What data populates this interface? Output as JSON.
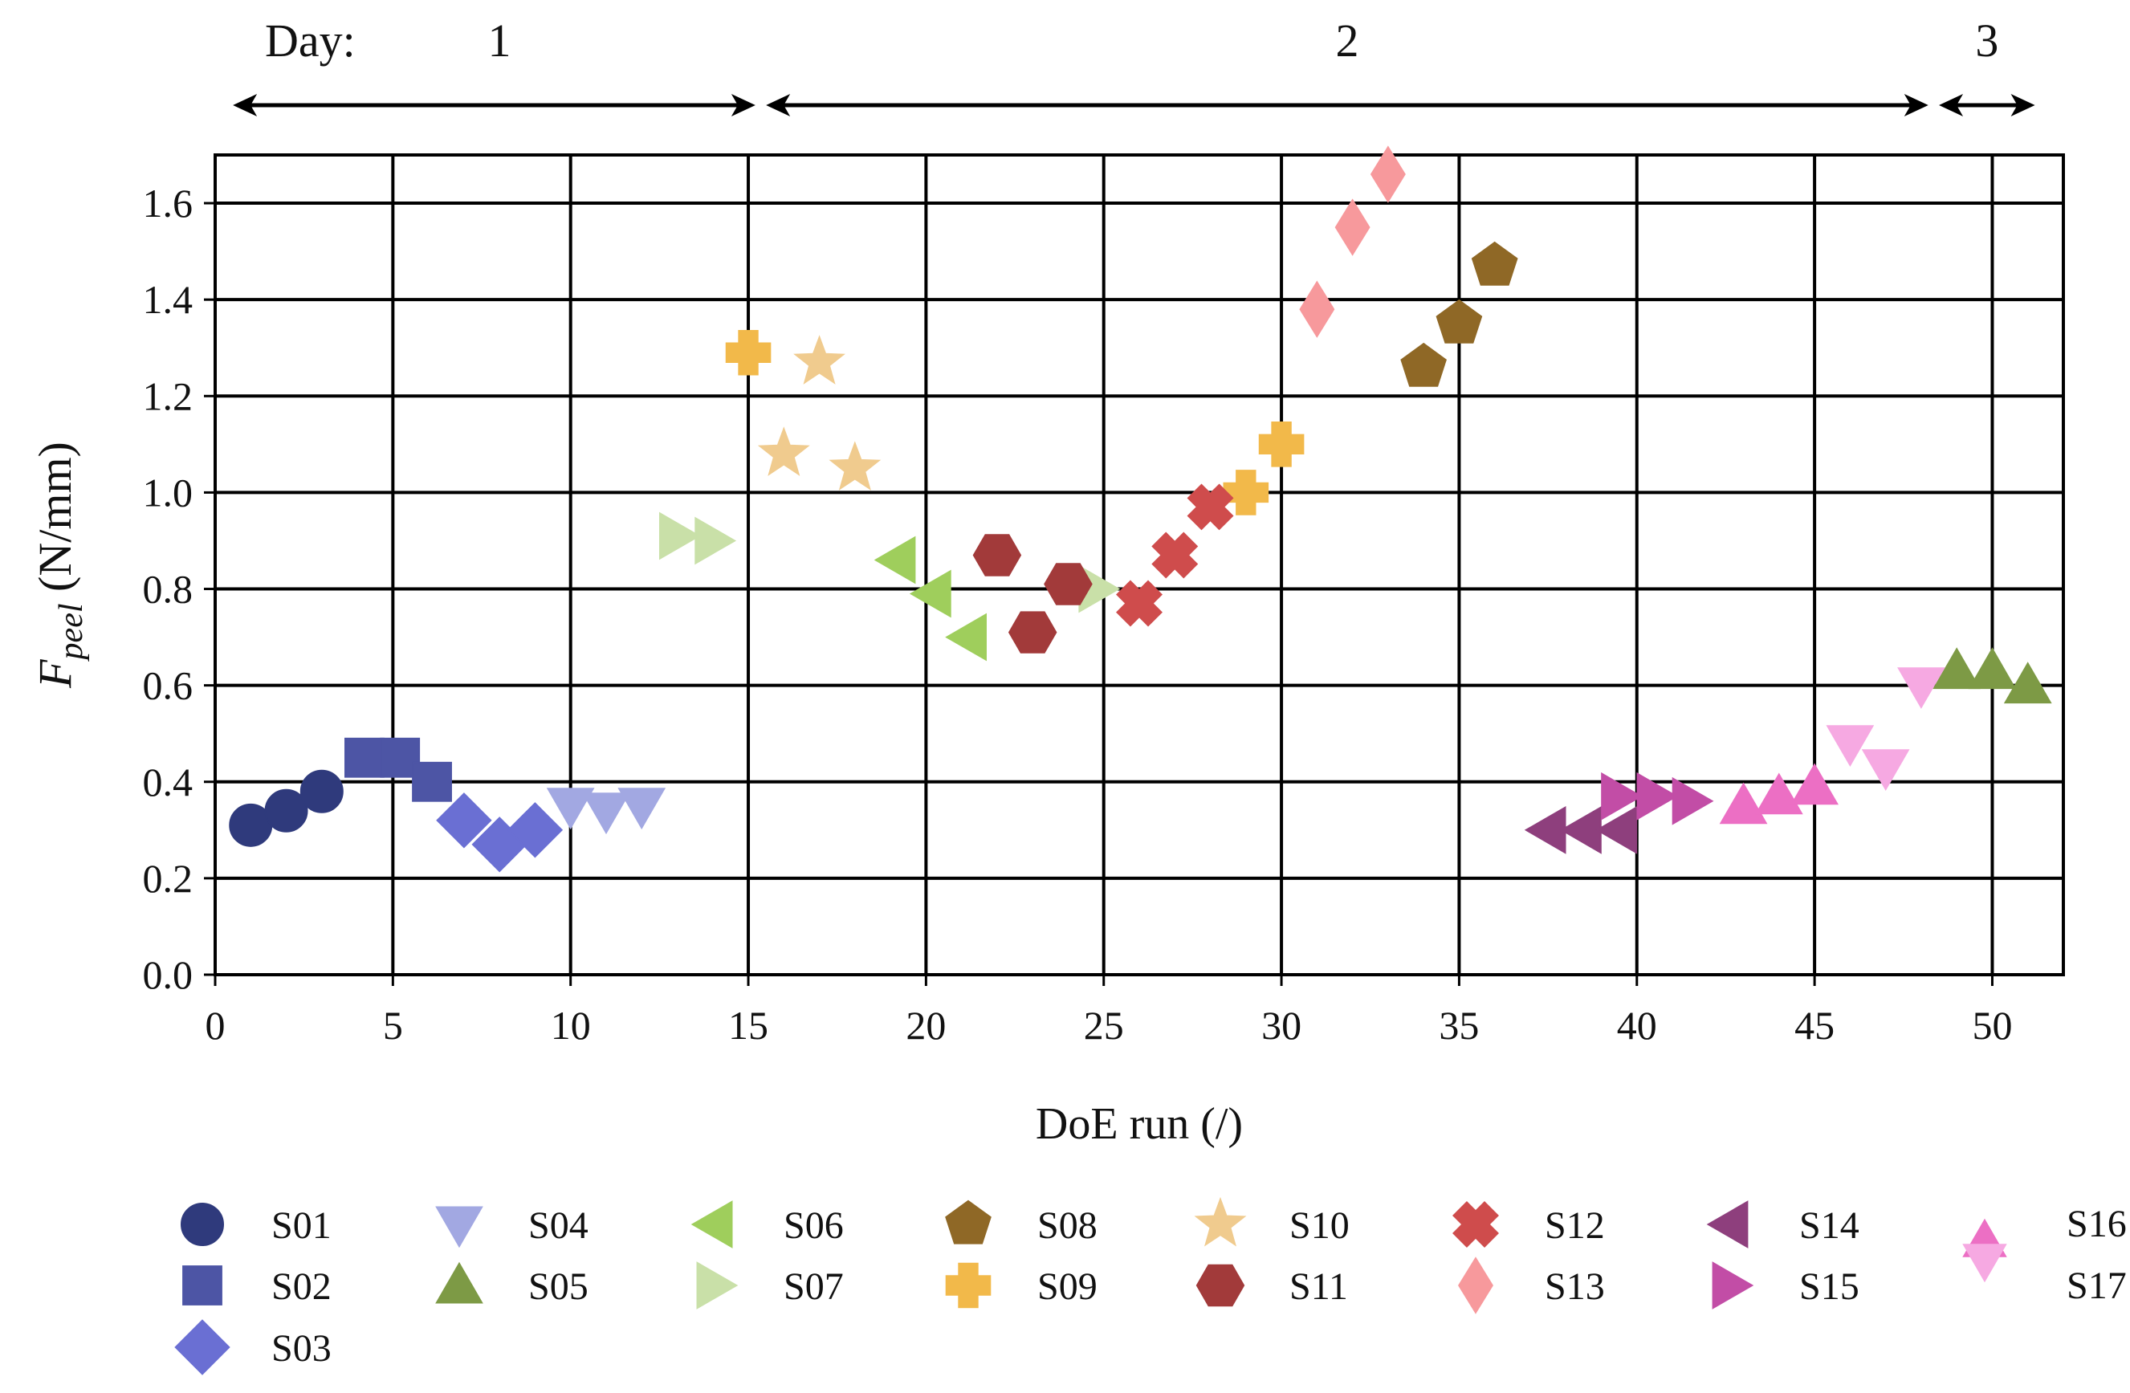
{
  "chart_data": {
    "type": "scatter",
    "day_label": "Day:",
    "days": [
      {
        "label": "1",
        "start": 0.5,
        "end": 15.2
      },
      {
        "label": "2",
        "start": 15.5,
        "end": 48.2
      },
      {
        "label": "3",
        "start": 48.5,
        "end": 51.2
      }
    ],
    "xlabel": "DoE run (/)",
    "ylabel": {
      "main": "F",
      "sub": "peel",
      "unit": " (N/mm)"
    },
    "xlim": [
      0,
      52
    ],
    "ylim": [
      0.0,
      1.7
    ],
    "xticks": [
      0,
      5,
      10,
      15,
      20,
      25,
      30,
      35,
      40,
      45,
      50
    ],
    "yticks": [
      "0.0",
      "0.2",
      "0.4",
      "0.6",
      "0.8",
      "1.0",
      "1.2",
      "1.4",
      "1.6"
    ],
    "grid": true,
    "legend_position": "bottom",
    "series": [
      {
        "name": "S01",
        "marker": "circle",
        "color": "#2f3a7c",
        "points": [
          [
            1,
            0.31
          ],
          [
            2,
            0.34
          ],
          [
            3,
            0.38
          ]
        ]
      },
      {
        "name": "S02",
        "marker": "square",
        "color": "#4d55a5",
        "points": [
          [
            4.2,
            0.45
          ],
          [
            5.2,
            0.45
          ],
          [
            6.1,
            0.4
          ]
        ]
      },
      {
        "name": "S03",
        "marker": "diamond",
        "color": "#6a6fd3",
        "points": [
          [
            7,
            0.32
          ],
          [
            8,
            0.27
          ],
          [
            9,
            0.3
          ]
        ]
      },
      {
        "name": "S04",
        "marker": "triangle-down",
        "color": "#a2a8e2",
        "points": [
          [
            10,
            0.35
          ],
          [
            11,
            0.34
          ],
          [
            12,
            0.35
          ]
        ]
      },
      {
        "name": "S05",
        "marker": "triangle-up",
        "color": "#7d9a45",
        "points": [
          [
            49,
            0.63
          ],
          [
            50,
            0.63
          ],
          [
            51,
            0.6
          ]
        ]
      },
      {
        "name": "S06",
        "marker": "triangle-left",
        "color": "#9fce5c",
        "points": [
          [
            19.2,
            0.86
          ],
          [
            20.2,
            0.79
          ],
          [
            21.2,
            0.7
          ]
        ]
      },
      {
        "name": "S07",
        "marker": "triangle-right",
        "color": "#c9e0a8",
        "points": [
          [
            13,
            0.91
          ],
          [
            14,
            0.9
          ],
          [
            24.8,
            0.8
          ]
        ]
      },
      {
        "name": "S08",
        "marker": "pentagon",
        "color": "#8f6826",
        "points": [
          [
            34,
            1.26
          ],
          [
            35,
            1.35
          ],
          [
            36,
            1.47
          ]
        ]
      },
      {
        "name": "S09",
        "marker": "plus",
        "color": "#f2b94a",
        "points": [
          [
            15,
            1.29
          ],
          [
            29,
            1.0
          ],
          [
            30,
            1.1
          ]
        ]
      },
      {
        "name": "S10",
        "marker": "star",
        "color": "#f0cb8e",
        "points": [
          [
            16,
            1.08
          ],
          [
            17,
            1.27
          ],
          [
            18,
            1.05
          ]
        ]
      },
      {
        "name": "S11",
        "marker": "hexagon",
        "color": "#a23a3a",
        "points": [
          [
            22,
            0.87
          ],
          [
            23,
            0.71
          ],
          [
            24,
            0.81
          ]
        ]
      },
      {
        "name": "S12",
        "marker": "x",
        "color": "#cf4c4c",
        "points": [
          [
            26,
            0.77
          ],
          [
            27,
            0.87
          ],
          [
            28,
            0.97
          ]
        ]
      },
      {
        "name": "S13",
        "marker": "thin-diamond",
        "color": "#f7999c",
        "points": [
          [
            31,
            1.38
          ],
          [
            32,
            1.55
          ],
          [
            33,
            1.66
          ]
        ]
      },
      {
        "name": "S14",
        "marker": "triangle-left",
        "color": "#8e3f7d",
        "points": [
          [
            37.5,
            0.3
          ],
          [
            38.5,
            0.3
          ],
          [
            39.5,
            0.3
          ]
        ]
      },
      {
        "name": "S15",
        "marker": "triangle-right",
        "color": "#c24da6",
        "points": [
          [
            39.5,
            0.37
          ],
          [
            40.5,
            0.37
          ],
          [
            41.5,
            0.36
          ]
        ]
      },
      {
        "name": "S16",
        "marker": "triangle-up",
        "color": "#ec6fc4",
        "points": [
          [
            43,
            0.35
          ],
          [
            44,
            0.37
          ],
          [
            45,
            0.39
          ]
        ]
      },
      {
        "name": "S17",
        "marker": "triangle-down",
        "color": "#f6a9e2",
        "points": [
          [
            46,
            0.48
          ],
          [
            47,
            0.43
          ],
          [
            48,
            0.6
          ]
        ]
      }
    ],
    "legend_columns": [
      [
        "S01",
        "S02",
        "S03"
      ],
      [
        "S04",
        "S05"
      ],
      [
        "S06",
        "S07"
      ],
      [
        "S08",
        "S09"
      ],
      [
        "S10",
        "S11"
      ],
      [
        "S12",
        "S13"
      ],
      [
        "S14",
        "S15"
      ],
      [
        "S16S17"
      ]
    ]
  }
}
